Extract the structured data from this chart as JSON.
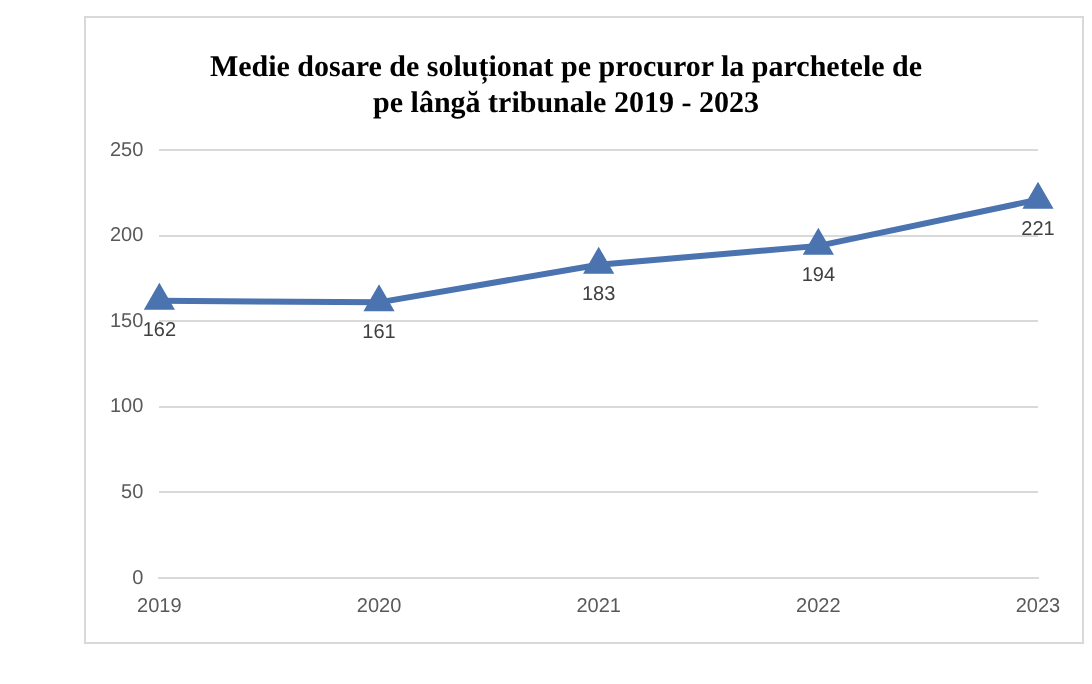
{
  "chart_data": {
    "type": "line",
    "title": "Medie dosare de soluționat pe procuror la parchetele de pe lângă tribunale 2019 - 2023",
    "categories": [
      "2019",
      "2020",
      "2021",
      "2022",
      "2023"
    ],
    "series": [
      {
        "color": "#4a73b0",
        "values": [
          162,
          161,
          183,
          194,
          221
        ]
      }
    ],
    "ylim": [
      0,
      250
    ],
    "yticks": [
      0,
      50,
      100,
      150,
      200,
      250
    ],
    "grid": "y",
    "legend": false,
    "marker": "triangle",
    "line_style": "solid",
    "data_labels": true
  }
}
